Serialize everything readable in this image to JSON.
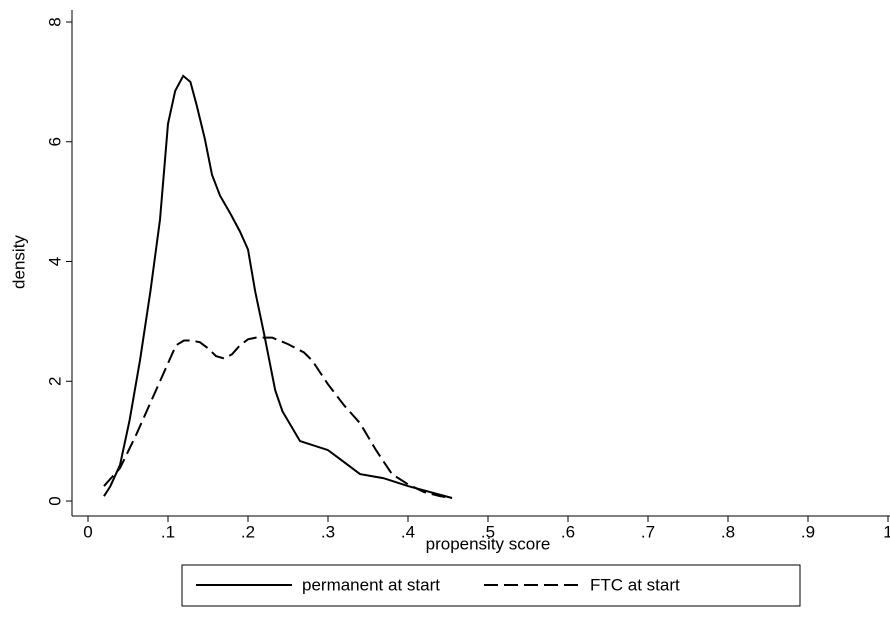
{
  "chart_data": {
    "type": "line",
    "xlabel": "propensity score",
    "ylabel": "density",
    "xlim": [
      -0.02,
      1.0
    ],
    "ylim": [
      -0.25,
      8.2
    ],
    "xticks": [
      0,
      {
        "value": 0.1,
        "label": ".1"
      },
      {
        "value": 0.2,
        "label": ".2"
      },
      {
        "value": 0.3,
        "label": ".3"
      },
      {
        "value": 0.4,
        "label": ".4"
      },
      {
        "value": 0.5,
        "label": ".5"
      },
      {
        "value": 0.6,
        "label": ".6"
      },
      {
        "value": 0.7,
        "label": ".7"
      },
      {
        "value": 0.8,
        "label": ".8"
      },
      {
        "value": 0.9,
        "label": ".9"
      },
      1
    ],
    "yticks": [
      0,
      2,
      4,
      6,
      8
    ],
    "grid": false,
    "legend": "bottom",
    "series": [
      {
        "name": "permanent at start",
        "color": "#000000",
        "style": "solid",
        "x": [
          0.02,
          0.028,
          0.04,
          0.052,
          0.065,
          0.078,
          0.09,
          0.1,
          0.109,
          0.119,
          0.128,
          0.136,
          0.146,
          0.155,
          0.165,
          0.178,
          0.19,
          0.2,
          0.209,
          0.22,
          0.234,
          0.243,
          0.265,
          0.3,
          0.315,
          0.34,
          0.37,
          0.4,
          0.455
        ],
        "values": [
          0.08,
          0.25,
          0.6,
          1.35,
          2.35,
          3.5,
          4.7,
          6.3,
          6.85,
          7.1,
          7.0,
          6.6,
          6.05,
          5.45,
          5.1,
          4.8,
          4.5,
          4.2,
          3.5,
          2.8,
          1.85,
          1.5,
          1.0,
          0.85,
          0.7,
          0.45,
          0.38,
          0.25,
          0.05
        ]
      },
      {
        "name": "FTC at start",
        "color": "#000000",
        "style": "dashed",
        "x": [
          0.02,
          0.04,
          0.06,
          0.08,
          0.1,
          0.11,
          0.12,
          0.13,
          0.14,
          0.15,
          0.16,
          0.17,
          0.18,
          0.19,
          0.2,
          0.21,
          0.23,
          0.25,
          0.27,
          0.28,
          0.3,
          0.32,
          0.34,
          0.36,
          0.38,
          0.4,
          0.42,
          0.44,
          0.455
        ],
        "values": [
          0.25,
          0.55,
          1.1,
          1.7,
          2.3,
          2.6,
          2.68,
          2.68,
          2.65,
          2.55,
          2.42,
          2.38,
          2.45,
          2.6,
          2.7,
          2.73,
          2.73,
          2.62,
          2.48,
          2.35,
          1.95,
          1.6,
          1.3,
          0.85,
          0.45,
          0.28,
          0.15,
          0.08,
          0.05
        ]
      }
    ]
  }
}
